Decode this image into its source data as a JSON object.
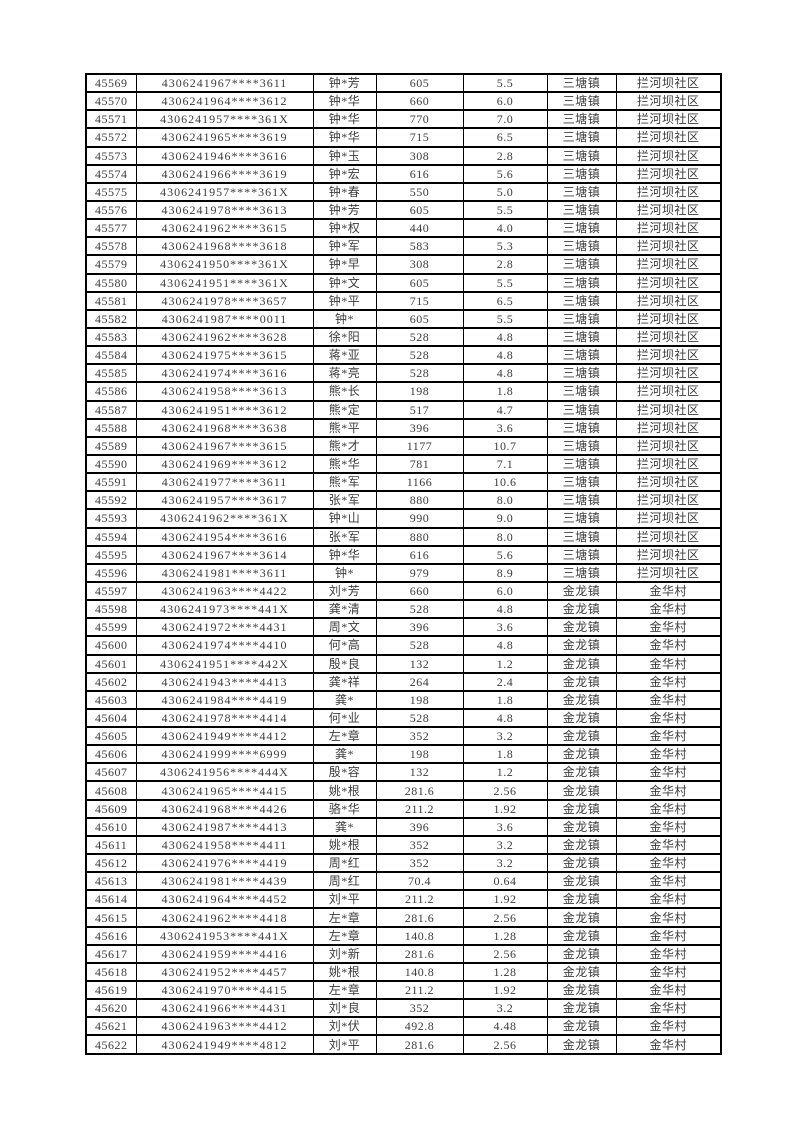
{
  "page": {
    "background_color": "#ffffff"
  },
  "table": {
    "text_color": "#3d3d3d",
    "border_color": "#000000",
    "columns": [
      "serial-number",
      "id-card-number",
      "name-masked",
      "amount",
      "amount-secondary",
      "town",
      "village"
    ],
    "rows": [
      [
        "45569",
        "4306241967****3611",
        "钟*芳",
        "605",
        "5.5",
        "三塘镇",
        "拦河坝社区"
      ],
      [
        "45570",
        "4306241964****3612",
        "钟*华",
        "660",
        "6.0",
        "三塘镇",
        "拦河坝社区"
      ],
      [
        "45571",
        "4306241957****361X",
        "钟*华",
        "770",
        "7.0",
        "三塘镇",
        "拦河坝社区"
      ],
      [
        "45572",
        "4306241965****3619",
        "钟*华",
        "715",
        "6.5",
        "三塘镇",
        "拦河坝社区"
      ],
      [
        "45573",
        "4306241946****3616",
        "钟*玉",
        "308",
        "2.8",
        "三塘镇",
        "拦河坝社区"
      ],
      [
        "45574",
        "4306241966****3619",
        "钟*宏",
        "616",
        "5.6",
        "三塘镇",
        "拦河坝社区"
      ],
      [
        "45575",
        "4306241957****361X",
        "钟*春",
        "550",
        "5.0",
        "三塘镇",
        "拦河坝社区"
      ],
      [
        "45576",
        "4306241978****3613",
        "钟*芳",
        "605",
        "5.5",
        "三塘镇",
        "拦河坝社区"
      ],
      [
        "45577",
        "4306241962****3615",
        "钟*权",
        "440",
        "4.0",
        "三塘镇",
        "拦河坝社区"
      ],
      [
        "45578",
        "4306241968****3618",
        "钟*军",
        "583",
        "5.3",
        "三塘镇",
        "拦河坝社区"
      ],
      [
        "45579",
        "4306241950****361X",
        "钟*早",
        "308",
        "2.8",
        "三塘镇",
        "拦河坝社区"
      ],
      [
        "45580",
        "4306241951****361X",
        "钟*文",
        "605",
        "5.5",
        "三塘镇",
        "拦河坝社区"
      ],
      [
        "45581",
        "4306241978****3657",
        "钟*平",
        "715",
        "6.5",
        "三塘镇",
        "拦河坝社区"
      ],
      [
        "45582",
        "4306241987****0011",
        "钟*",
        "605",
        "5.5",
        "三塘镇",
        "拦河坝社区"
      ],
      [
        "45583",
        "4306241962****3628",
        "徐*阳",
        "528",
        "4.8",
        "三塘镇",
        "拦河坝社区"
      ],
      [
        "45584",
        "4306241975****3615",
        "蒋*亚",
        "528",
        "4.8",
        "三塘镇",
        "拦河坝社区"
      ],
      [
        "45585",
        "4306241974****3616",
        "蒋*亮",
        "528",
        "4.8",
        "三塘镇",
        "拦河坝社区"
      ],
      [
        "45586",
        "4306241958****3613",
        "熊*长",
        "198",
        "1.8",
        "三塘镇",
        "拦河坝社区"
      ],
      [
        "45587",
        "4306241951****3612",
        "熊*定",
        "517",
        "4.7",
        "三塘镇",
        "拦河坝社区"
      ],
      [
        "45588",
        "4306241968****3638",
        "熊*平",
        "396",
        "3.6",
        "三塘镇",
        "拦河坝社区"
      ],
      [
        "45589",
        "4306241967****3615",
        "熊*才",
        "1177",
        "10.7",
        "三塘镇",
        "拦河坝社区"
      ],
      [
        "45590",
        "4306241969****3612",
        "熊*华",
        "781",
        "7.1",
        "三塘镇",
        "拦河坝社区"
      ],
      [
        "45591",
        "4306241977****3611",
        "熊*军",
        "1166",
        "10.6",
        "三塘镇",
        "拦河坝社区"
      ],
      [
        "45592",
        "4306241957****3617",
        "张*军",
        "880",
        "8.0",
        "三塘镇",
        "拦河坝社区"
      ],
      [
        "45593",
        "4306241962****361X",
        "钟*山",
        "990",
        "9.0",
        "三塘镇",
        "拦河坝社区"
      ],
      [
        "45594",
        "4306241954****3616",
        "张*军",
        "880",
        "8.0",
        "三塘镇",
        "拦河坝社区"
      ],
      [
        "45595",
        "4306241967****3614",
        "钟*华",
        "616",
        "5.6",
        "三塘镇",
        "拦河坝社区"
      ],
      [
        "45596",
        "4306241981****3611",
        "钟*",
        "979",
        "8.9",
        "三塘镇",
        "拦河坝社区"
      ],
      [
        "45597",
        "4306241963****4422",
        "刘*芳",
        "660",
        "6.0",
        "金龙镇",
        "金华村"
      ],
      [
        "45598",
        "4306241973****441X",
        "龚*清",
        "528",
        "4.8",
        "金龙镇",
        "金华村"
      ],
      [
        "45599",
        "4306241972****4431",
        "周*文",
        "396",
        "3.6",
        "金龙镇",
        "金华村"
      ],
      [
        "45600",
        "4306241974****4410",
        "何*高",
        "528",
        "4.8",
        "金龙镇",
        "金华村"
      ],
      [
        "45601",
        "4306241951****442X",
        "殷*良",
        "132",
        "1.2",
        "金龙镇",
        "金华村"
      ],
      [
        "45602",
        "4306241943****4413",
        "龚*祥",
        "264",
        "2.4",
        "金龙镇",
        "金华村"
      ],
      [
        "45603",
        "4306241984****4419",
        "龚*",
        "198",
        "1.8",
        "金龙镇",
        "金华村"
      ],
      [
        "45604",
        "4306241978****4414",
        "何*业",
        "528",
        "4.8",
        "金龙镇",
        "金华村"
      ],
      [
        "45605",
        "4306241949****4412",
        "左*章",
        "352",
        "3.2",
        "金龙镇",
        "金华村"
      ],
      [
        "45606",
        "4306241999****6999",
        "龚*",
        "198",
        "1.8",
        "金龙镇",
        "金华村"
      ],
      [
        "45607",
        "4306241956****444X",
        "殷*容",
        "132",
        "1.2",
        "金龙镇",
        "金华村"
      ],
      [
        "45608",
        "4306241965****4415",
        "姚*根",
        "281.6",
        "2.56",
        "金龙镇",
        "金华村"
      ],
      [
        "45609",
        "4306241968****4426",
        "骆*华",
        "211.2",
        "1.92",
        "金龙镇",
        "金华村"
      ],
      [
        "45610",
        "4306241987****4413",
        "龚*",
        "396",
        "3.6",
        "金龙镇",
        "金华村"
      ],
      [
        "45611",
        "4306241958****4411",
        "姚*根",
        "352",
        "3.2",
        "金龙镇",
        "金华村"
      ],
      [
        "45612",
        "4306241976****4419",
        "周*红",
        "352",
        "3.2",
        "金龙镇",
        "金华村"
      ],
      [
        "45613",
        "4306241981****4439",
        "周*红",
        "70.4",
        "0.64",
        "金龙镇",
        "金华村"
      ],
      [
        "45614",
        "4306241964****4452",
        "刘*平",
        "211.2",
        "1.92",
        "金龙镇",
        "金华村"
      ],
      [
        "45615",
        "4306241962****4418",
        "左*章",
        "281.6",
        "2.56",
        "金龙镇",
        "金华村"
      ],
      [
        "45616",
        "4306241953****441X",
        "左*章",
        "140.8",
        "1.28",
        "金龙镇",
        "金华村"
      ],
      [
        "45617",
        "4306241959****4416",
        "刘*新",
        "281.6",
        "2.56",
        "金龙镇",
        "金华村"
      ],
      [
        "45618",
        "4306241952****4457",
        "姚*根",
        "140.8",
        "1.28",
        "金龙镇",
        "金华村"
      ],
      [
        "45619",
        "4306241970****4415",
        "左*章",
        "211.2",
        "1.92",
        "金龙镇",
        "金华村"
      ],
      [
        "45620",
        "4306241966****4431",
        "刘*良",
        "352",
        "3.2",
        "金龙镇",
        "金华村"
      ],
      [
        "45621",
        "4306241963****4412",
        "刘*伏",
        "492.8",
        "4.48",
        "金龙镇",
        "金华村"
      ],
      [
        "45622",
        "4306241949****4812",
        "刘*平",
        "281.6",
        "2.56",
        "金龙镇",
        "金华村"
      ]
    ]
  }
}
